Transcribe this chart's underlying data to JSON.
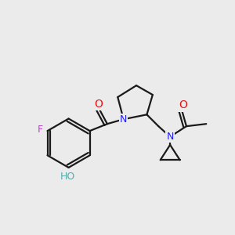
{
  "bg_color": "#ebebeb",
  "bond_color": "#1a1a1a",
  "N_color": "#2020ff",
  "O_color": "#ee1010",
  "F_color": "#bb44cc",
  "OH_color": "#55aaaa",
  "linewidth": 1.6,
  "figsize": [
    3.0,
    3.0
  ],
  "dpi": 100,
  "xlim": [
    0,
    10
  ],
  "ylim": [
    0,
    10
  ]
}
